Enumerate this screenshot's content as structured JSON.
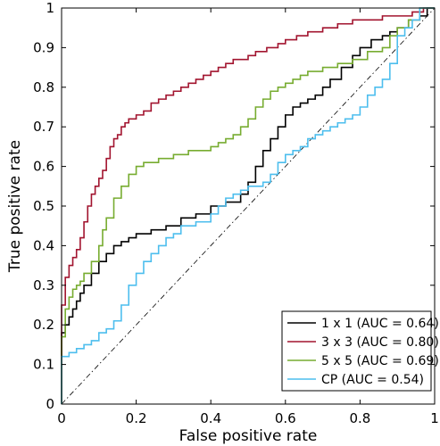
{
  "chart_data": {
    "type": "line",
    "xlabel": "False positive rate",
    "ylabel": "True positive rate",
    "xlim": [
      0,
      1
    ],
    "ylim": [
      0,
      1
    ],
    "xticks": [
      "0",
      "0.2",
      "0.4",
      "0.6",
      "0.8",
      "1"
    ],
    "yticks": [
      "0",
      "0.1",
      "0.2",
      "0.3",
      "0.4",
      "0.5",
      "0.6",
      "0.7",
      "0.8",
      "0.9",
      "1"
    ],
    "grid": false,
    "legend_position": "bottom-right",
    "reference_line": {
      "x": [
        0,
        1
      ],
      "y": [
        0,
        1
      ],
      "style": "dash-dot",
      "color": "#000000"
    },
    "series": [
      {
        "name": "1 x 1 (AUC = 0.64)",
        "color": "#000000",
        "x": [
          0,
          0,
          0.01,
          0.02,
          0.03,
          0.04,
          0.05,
          0.06,
          0.08,
          0.1,
          0.12,
          0.14,
          0.16,
          0.18,
          0.2,
          0.24,
          0.28,
          0.32,
          0.36,
          0.4,
          0.44,
          0.48,
          0.5,
          0.52,
          0.54,
          0.56,
          0.58,
          0.6,
          0.62,
          0.64,
          0.66,
          0.68,
          0.7,
          0.72,
          0.75,
          0.78,
          0.8,
          0.83,
          0.86,
          0.88,
          0.9,
          0.93,
          0.96,
          0.98,
          1.0
        ],
        "y": [
          0,
          0.13,
          0.18,
          0.2,
          0.22,
          0.24,
          0.26,
          0.28,
          0.3,
          0.33,
          0.36,
          0.38,
          0.4,
          0.41,
          0.42,
          0.43,
          0.44,
          0.45,
          0.47,
          0.48,
          0.5,
          0.51,
          0.53,
          0.56,
          0.6,
          0.64,
          0.67,
          0.7,
          0.73,
          0.75,
          0.76,
          0.77,
          0.78,
          0.8,
          0.82,
          0.85,
          0.88,
          0.9,
          0.92,
          0.93,
          0.94,
          0.95,
          0.97,
          0.98,
          1.0
        ]
      },
      {
        "name": "3 x 3 (AUC = 0.80)",
        "color": "#a2142f",
        "x": [
          0,
          0,
          0.01,
          0.02,
          0.03,
          0.04,
          0.05,
          0.06,
          0.07,
          0.08,
          0.09,
          0.1,
          0.11,
          0.12,
          0.13,
          0.14,
          0.15,
          0.16,
          0.17,
          0.18,
          0.2,
          0.22,
          0.24,
          0.26,
          0.28,
          0.3,
          0.32,
          0.34,
          0.36,
          0.38,
          0.4,
          0.42,
          0.44,
          0.46,
          0.48,
          0.5,
          0.52,
          0.55,
          0.58,
          0.6,
          0.63,
          0.66,
          0.7,
          0.74,
          0.78,
          0.82,
          0.86,
          0.9,
          0.94,
          0.97,
          1.0
        ],
        "y": [
          0,
          0.13,
          0.25,
          0.32,
          0.35,
          0.37,
          0.39,
          0.42,
          0.46,
          0.5,
          0.53,
          0.55,
          0.57,
          0.59,
          0.62,
          0.65,
          0.67,
          0.68,
          0.7,
          0.71,
          0.72,
          0.73,
          0.74,
          0.76,
          0.77,
          0.78,
          0.79,
          0.8,
          0.81,
          0.82,
          0.83,
          0.84,
          0.85,
          0.86,
          0.87,
          0.87,
          0.88,
          0.89,
          0.9,
          0.91,
          0.92,
          0.93,
          0.94,
          0.95,
          0.96,
          0.97,
          0.97,
          0.98,
          0.98,
          0.99,
          1.0
        ]
      },
      {
        "name": "5 x 5 (AUC = 0.69)",
        "color": "#77ac30",
        "x": [
          0,
          0,
          0.01,
          0.02,
          0.03,
          0.04,
          0.05,
          0.06,
          0.08,
          0.1,
          0.11,
          0.12,
          0.14,
          0.16,
          0.18,
          0.2,
          0.22,
          0.24,
          0.26,
          0.28,
          0.3,
          0.32,
          0.34,
          0.36,
          0.38,
          0.4,
          0.42,
          0.44,
          0.46,
          0.48,
          0.5,
          0.52,
          0.54,
          0.56,
          0.58,
          0.6,
          0.62,
          0.64,
          0.66,
          0.7,
          0.74,
          0.78,
          0.82,
          0.86,
          0.88,
          0.9,
          0.93,
          0.96,
          1.0
        ],
        "y": [
          0,
          0.07,
          0.17,
          0.24,
          0.27,
          0.29,
          0.3,
          0.31,
          0.33,
          0.36,
          0.4,
          0.44,
          0.47,
          0.52,
          0.55,
          0.58,
          0.6,
          0.61,
          0.61,
          0.62,
          0.62,
          0.63,
          0.63,
          0.64,
          0.64,
          0.64,
          0.65,
          0.66,
          0.67,
          0.68,
          0.7,
          0.72,
          0.75,
          0.77,
          0.79,
          0.8,
          0.81,
          0.82,
          0.83,
          0.84,
          0.85,
          0.86,
          0.87,
          0.89,
          0.9,
          0.93,
          0.95,
          0.97,
          1.0
        ]
      },
      {
        "name": "CP (AUC = 0.54)",
        "color": "#4dbeee",
        "x": [
          0,
          0,
          0.02,
          0.04,
          0.06,
          0.08,
          0.1,
          0.12,
          0.14,
          0.16,
          0.18,
          0.2,
          0.22,
          0.24,
          0.26,
          0.28,
          0.3,
          0.32,
          0.34,
          0.36,
          0.38,
          0.4,
          0.42,
          0.44,
          0.46,
          0.48,
          0.5,
          0.52,
          0.54,
          0.56,
          0.58,
          0.6,
          0.62,
          0.64,
          0.66,
          0.68,
          0.7,
          0.72,
          0.74,
          0.76,
          0.78,
          0.8,
          0.82,
          0.84,
          0.86,
          0.88,
          0.9,
          0.92,
          0.94,
          0.96,
          1.0
        ],
        "y": [
          0,
          0.1,
          0.12,
          0.13,
          0.14,
          0.15,
          0.16,
          0.18,
          0.19,
          0.21,
          0.25,
          0.3,
          0.33,
          0.36,
          0.38,
          0.4,
          0.42,
          0.43,
          0.45,
          0.45,
          0.46,
          0.46,
          0.48,
          0.5,
          0.52,
          0.53,
          0.54,
          0.55,
          0.55,
          0.56,
          0.58,
          0.61,
          0.63,
          0.64,
          0.65,
          0.67,
          0.68,
          0.69,
          0.7,
          0.71,
          0.72,
          0.73,
          0.75,
          0.78,
          0.8,
          0.82,
          0.86,
          0.93,
          0.95,
          0.97,
          1.0
        ]
      }
    ]
  }
}
